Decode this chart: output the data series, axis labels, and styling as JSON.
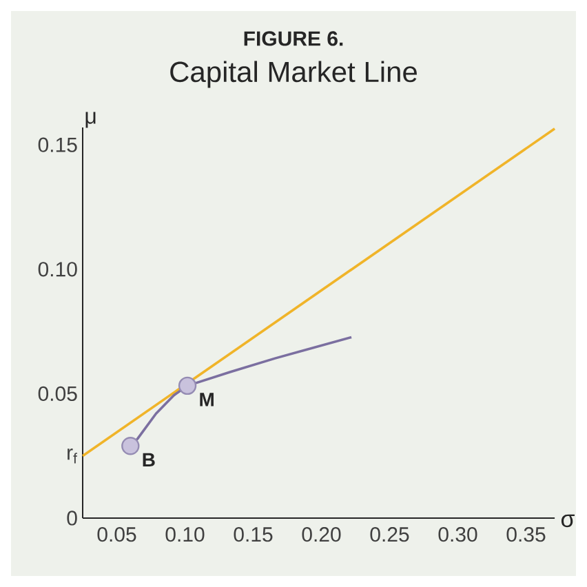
{
  "chart_data": {
    "type": "line",
    "title": "FIGURE 6.",
    "subtitle": "Capital Market Line",
    "xlabel": "σ",
    "ylabel": "μ",
    "xlim": [
      0.025,
      0.371
    ],
    "ylim": [
      0,
      0.157
    ],
    "xticks": [
      0.05,
      {
        "value": 0.1,
        "label": "0.10"
      },
      0.15,
      {
        "value": 0.2,
        "label": "0.20"
      },
      0.25,
      {
        "value": 0.3,
        "label": "0.30"
      },
      0.35
    ],
    "yticks": [
      0,
      {
        "value": 0.025,
        "label": "r$_{f}$"
      },
      0.05,
      {
        "value": 0.1,
        "label": "0.10"
      },
      0.15
    ],
    "series": [
      {
        "color": "#f0b429",
        "x": [
          0.025,
          0.371
        ],
        "values": [
          0.025,
          0.1565
        ]
      },
      {
        "color": "#7b6fa0",
        "x": [
          0.06,
          0.0654,
          0.0788,
          0.092,
          0.1018,
          0.133,
          0.166,
          0.222
        ],
        "values": [
          0.029,
          0.032,
          0.042,
          0.0494,
          0.0532,
          0.0587,
          0.0642,
          0.0727
        ]
      },
      {
        "type": "scatter",
        "color": "#c9c2dd",
        "marker": "circle",
        "x": [
          0.06,
          0.1018
        ],
        "values": [
          0.029,
          0.0532
        ]
      }
    ],
    "annotations": [
      {
        "text": "B",
        "x": 0.06,
        "y": 0.029
      },
      {
        "text": "M",
        "x": 0.1018,
        "y": 0.0532
      }
    ],
    "grid": false
  }
}
